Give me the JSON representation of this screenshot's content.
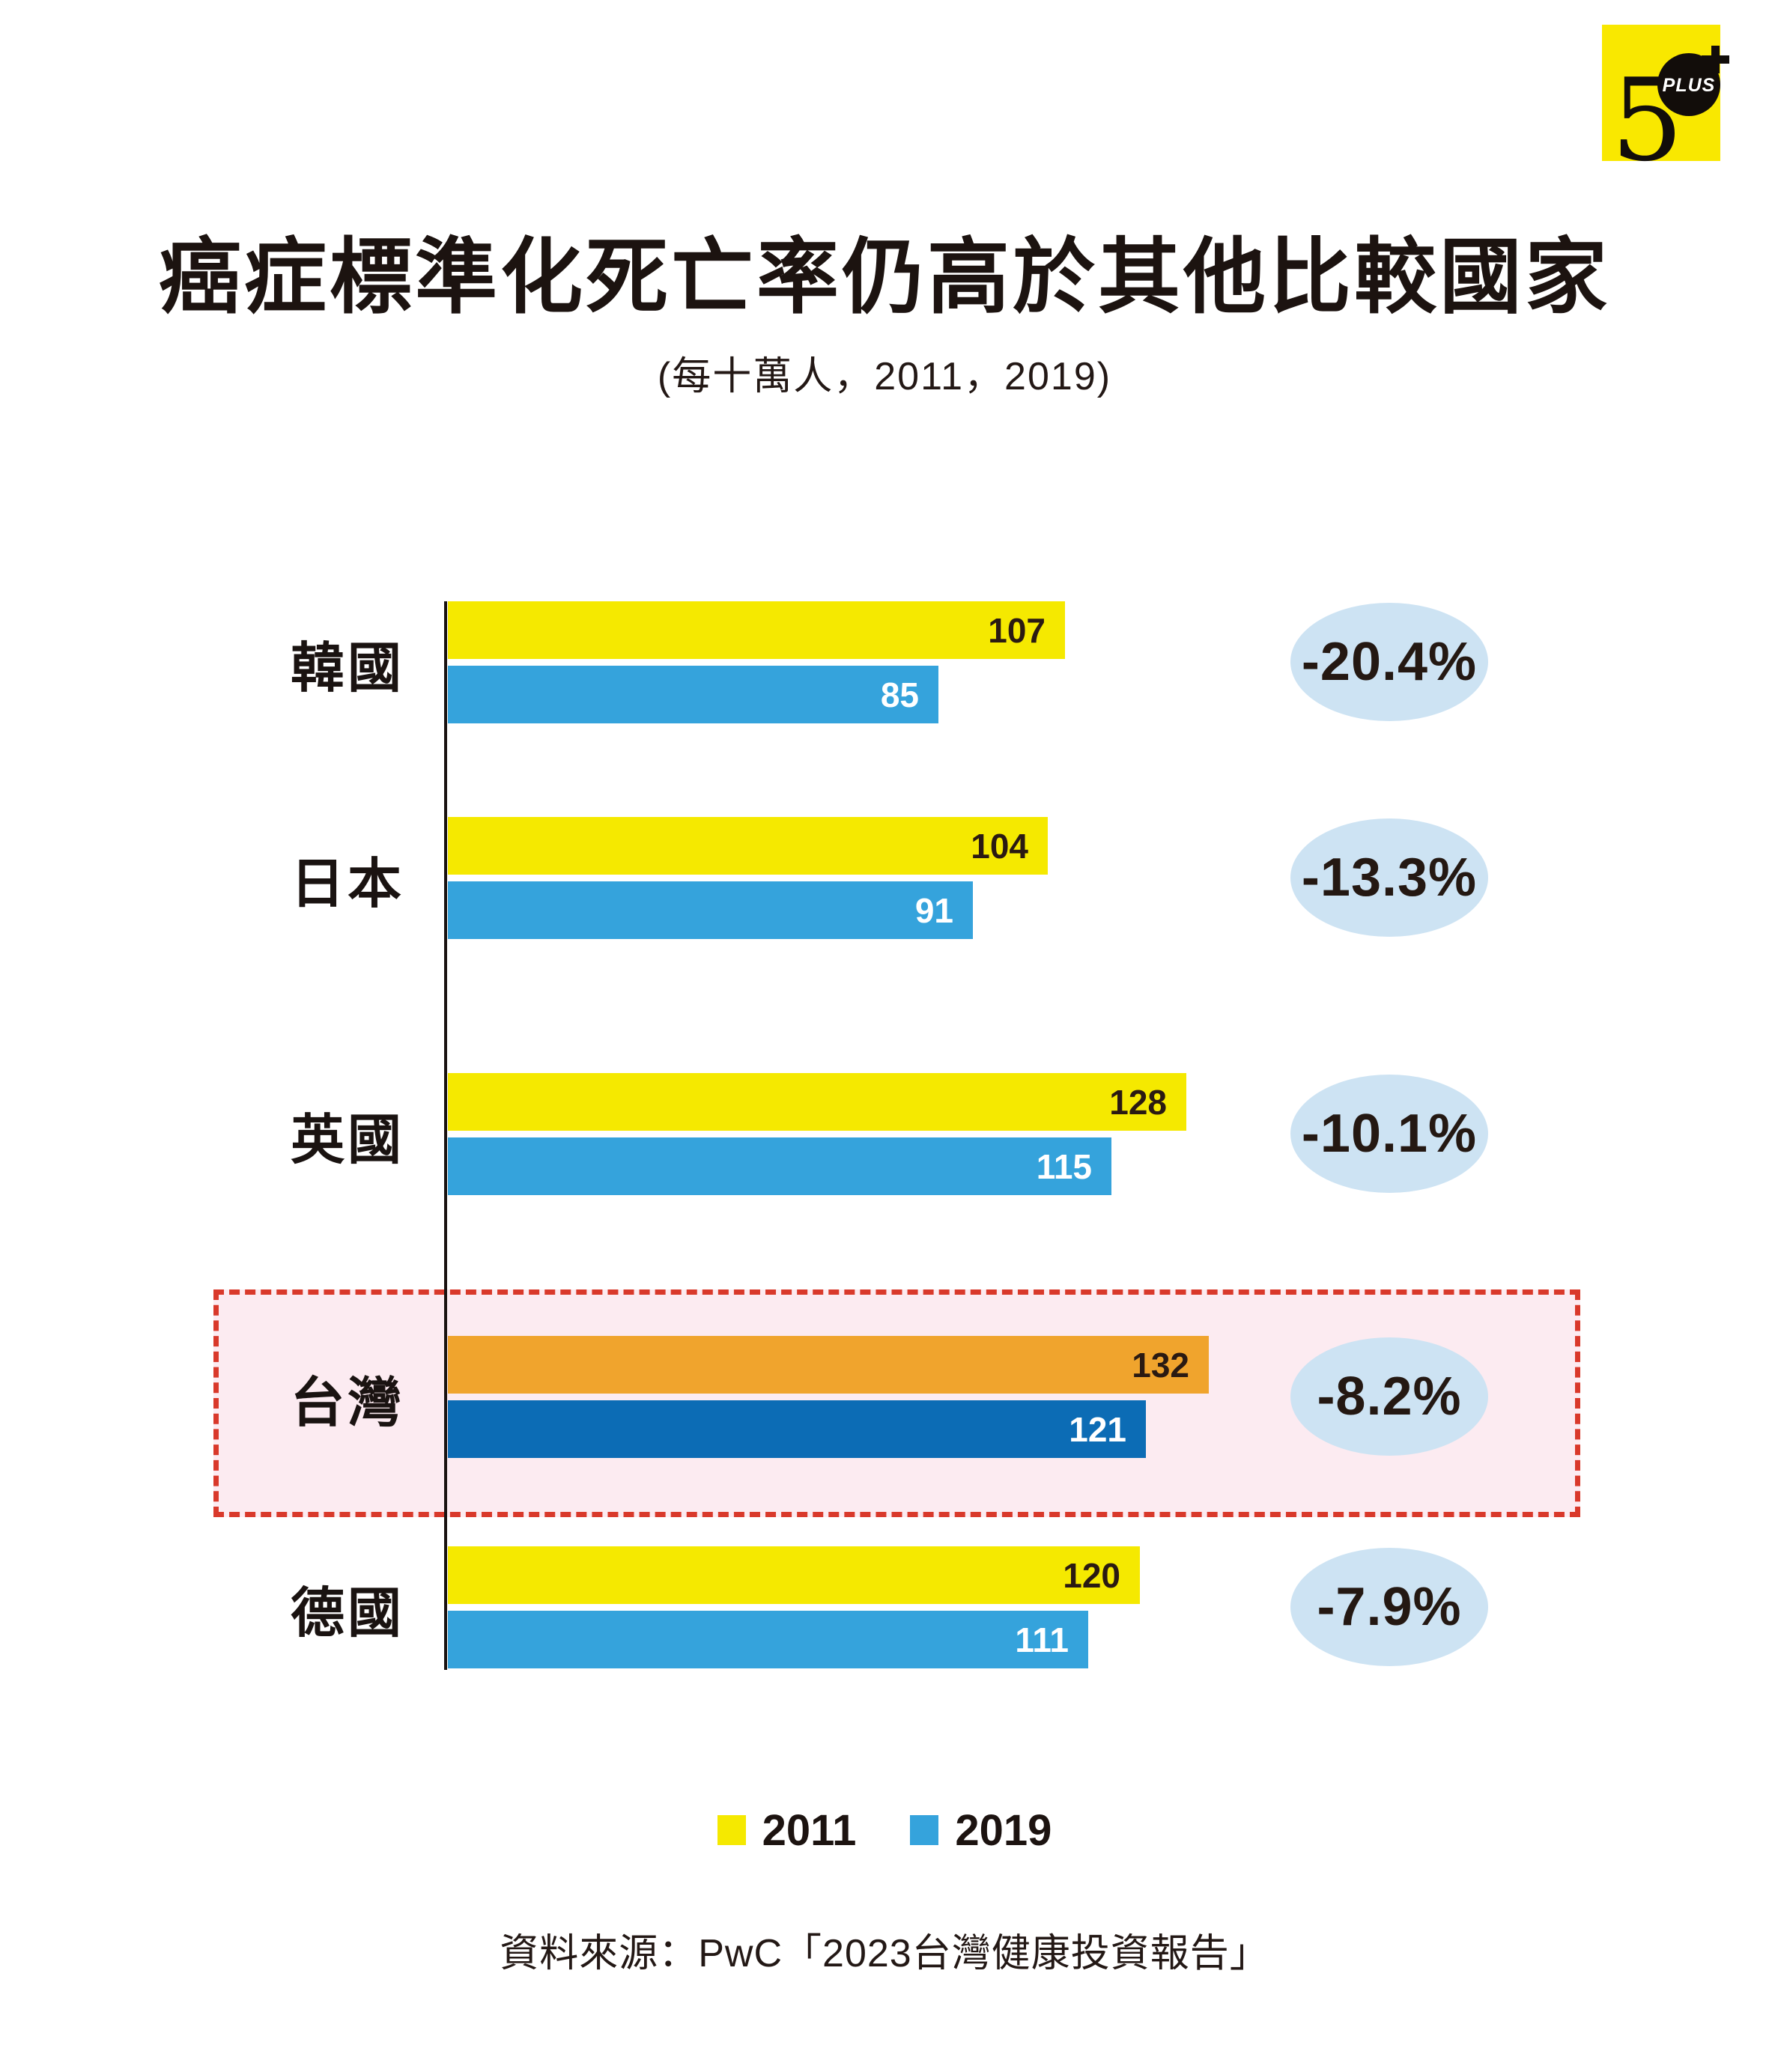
{
  "brand": {
    "logo_5": "5",
    "logo_badge": "PLUS",
    "logo_plus": "+"
  },
  "header": {
    "title": "癌症標準化死亡率仍高於其他比較國家",
    "subtitle": "(每十萬人，2011，2019)"
  },
  "colors": {
    "bar_2011": "#f5e900",
    "bar_2019": "#35a3dc",
    "highlight_bar_2011": "#f0a42d",
    "highlight_bar_2019": "#0c6cb5",
    "bubble_fill": "#cde3f3",
    "highlight_fill": "#fcebf1",
    "highlight_border": "#d9392b",
    "logo_yellow": "#f9e800",
    "value_on_light": "#2a1a12",
    "value_on_dark": "#ffffff"
  },
  "chart_data": {
    "type": "bar",
    "orientation": "horizontal",
    "title": "癌症標準化死亡率仍高於其他比較國家",
    "subtitle": "(每十萬人，2011，2019)",
    "categories": [
      "韓國",
      "日本",
      "英國",
      "台灣",
      "德國"
    ],
    "series": [
      {
        "name": "2011",
        "values": [
          107,
          104,
          128,
          132,
          120
        ]
      },
      {
        "name": "2019",
        "values": [
          85,
          91,
          115,
          121,
          111
        ]
      }
    ],
    "change_labels": [
      "-20.4%",
      "-13.3%",
      "-10.1%",
      "-8.2%",
      "-7.9%"
    ],
    "highlighted_category": "台灣",
    "xlim": [
      0,
      140
    ],
    "grid": false,
    "legend_position": "bottom",
    "value_labels_inside_bars": true
  },
  "legend": {
    "series_2011": "2011",
    "series_2019": "2019"
  },
  "source": "資料來源：PwC「2023台灣健康投資報告」"
}
